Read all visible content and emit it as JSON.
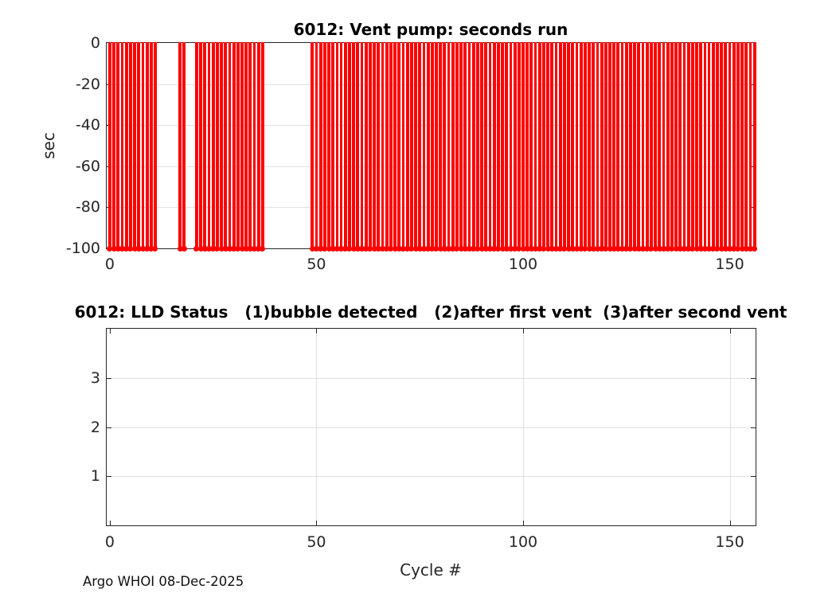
{
  "footer": "Argo WHOI 08-Dec-2025",
  "colors": {
    "stem": "#ff0000",
    "axis": "#262626",
    "grid": "#e0e0e0",
    "title_text": "#000000"
  },
  "chart_data": [
    {
      "type": "stem",
      "title": "6012: Vent pump: seconds run",
      "xlabel": "",
      "ylabel": "sec",
      "xlim": [
        -0.75,
        156.25
      ],
      "ylim": [
        -100,
        0
      ],
      "xticks": [
        0,
        50,
        100,
        150
      ],
      "yticks": [
        0,
        -20,
        -40,
        -60,
        -80,
        -100
      ],
      "grid": true,
      "legend": null,
      "stem_color": "#ff0000",
      "stem_baseline": 0,
      "stem_value_sec": -100,
      "stem_x_cycle_ranges_inclusive": [
        [
          0,
          11
        ],
        [
          17,
          18
        ],
        [
          21,
          37
        ],
        [
          49,
          156
        ]
      ],
      "missing_cycle_ranges_inclusive": [
        [
          12,
          16
        ],
        [
          19,
          20
        ],
        [
          38,
          48
        ]
      ]
    },
    {
      "type": "line",
      "title": "6012: LLD Status   (1)bubble detected   (2)after first vent  (3)after second vent",
      "xlabel": "Cycle #",
      "ylabel": "",
      "xlim": [
        -0.75,
        156.25
      ],
      "ylim": [
        0,
        4
      ],
      "xticks": [
        0,
        50,
        100,
        150
      ],
      "yticks": [
        1,
        2,
        3
      ],
      "grid": true,
      "legend": null,
      "series": []
    }
  ]
}
